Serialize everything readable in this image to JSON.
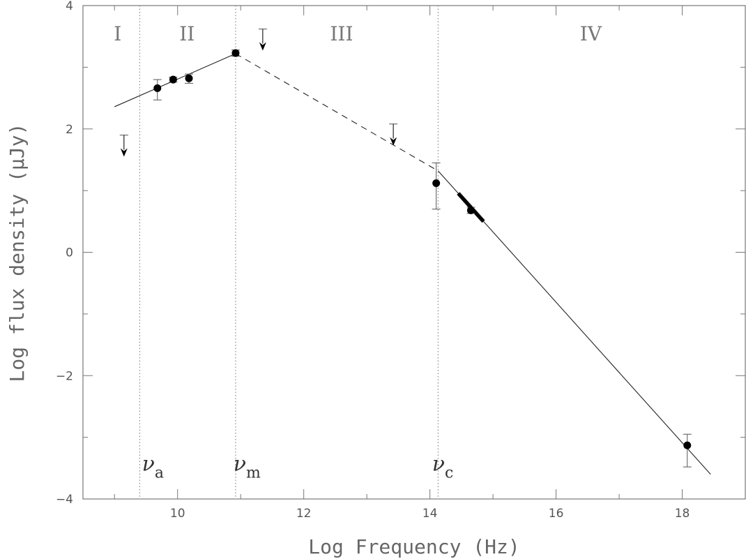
{
  "chart_data": {
    "type": "scatter",
    "xlabel": "Log Frequency (Hz)",
    "ylabel": "Log flux density (μJy)",
    "xlim": [
      8.5,
      19.0
    ],
    "ylim": [
      -4,
      4
    ],
    "xticks": [
      10,
      12,
      14,
      16,
      18
    ],
    "yticks": [
      -4,
      -2,
      0,
      2,
      4
    ],
    "xtick_labels": [
      "10",
      "12",
      "14",
      "16",
      "18"
    ],
    "ytick_labels": [
      "−4",
      "−2",
      "0",
      "2",
      "4"
    ],
    "grid": false,
    "regions": [
      {
        "label": "I",
        "x": 9.05,
        "y": 3.55
      },
      {
        "label": "II",
        "x": 10.15,
        "y": 3.55
      },
      {
        "label": "III",
        "x": 12.6,
        "y": 3.55
      },
      {
        "label": "IV",
        "x": 16.55,
        "y": 3.55
      }
    ],
    "break_frequencies": [
      {
        "symbol": "ν",
        "subscript": "a",
        "x": 9.4,
        "label_x": 9.7,
        "label_y": -3.45
      },
      {
        "symbol": "ν",
        "subscript": "m",
        "x": 10.92,
        "label_x": 11.15,
        "label_y": -3.45
      },
      {
        "symbol": "ν",
        "subscript": "c",
        "x": 14.13,
        "label_x": 14.3,
        "label_y": -3.45
      }
    ],
    "model_segments": [
      {
        "style": "solid",
        "points": [
          [
            9.0,
            2.36
          ],
          [
            10.92,
            3.22
          ]
        ]
      },
      {
        "style": "dashed",
        "points": [
          [
            10.92,
            3.22
          ],
          [
            14.13,
            1.32
          ]
        ]
      },
      {
        "style": "solid",
        "points": [
          [
            14.13,
            1.32
          ],
          [
            18.45,
            -3.6
          ]
        ]
      }
    ],
    "series": [
      {
        "points": [
          {
            "x": 9.68,
            "y": 2.66,
            "yerr_low": 2.47,
            "yerr_high": 2.8
          },
          {
            "x": 9.93,
            "y": 2.8,
            "yerr_low": 2.76,
            "yerr_high": 2.84
          },
          {
            "x": 10.18,
            "y": 2.82,
            "yerr_low": 2.74,
            "yerr_high": 2.89
          },
          {
            "x": 10.92,
            "y": 3.23,
            "yerr_low": 3.18,
            "yerr_high": 3.28
          },
          {
            "x": 14.1,
            "y": 1.12,
            "yerr_low": 0.7,
            "yerr_high": 1.45
          },
          {
            "x": 14.65,
            "y": 0.68,
            "yerr_low": 0.63,
            "yerr_high": 0.73
          },
          {
            "x": 18.08,
            "y": -3.13,
            "yerr_low": -3.48,
            "yerr_high": -2.95
          }
        ]
      }
    ],
    "upper_limits": [
      {
        "x": 9.15,
        "y": 1.9,
        "arrow_to": 1.55
      },
      {
        "x": 11.35,
        "y": 3.62,
        "arrow_to": 3.27
      },
      {
        "x": 13.42,
        "y": 2.08,
        "arrow_to": 1.73
      }
    ],
    "optical_band": {
      "x_start": 14.45,
      "x_end": 14.85
    }
  }
}
